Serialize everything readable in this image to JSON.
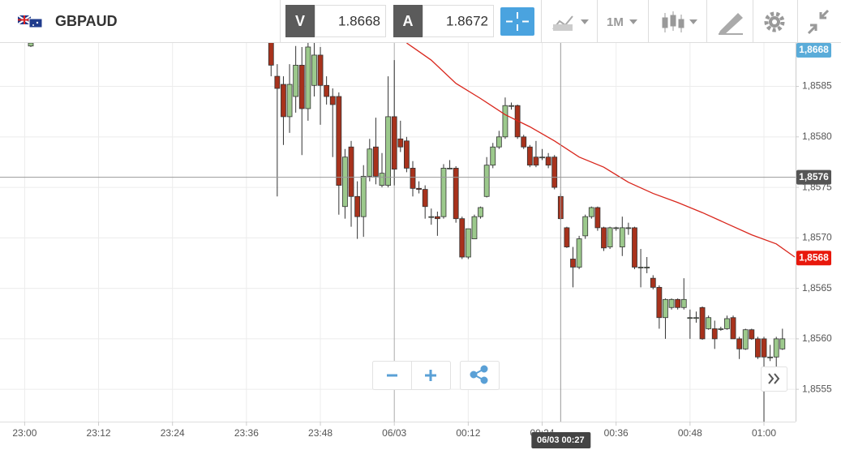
{
  "header": {
    "symbol": "GBPAUD",
    "bid_label": "V",
    "bid": "1.8668",
    "ask_label": "A",
    "ask": "1.8672",
    "timeframe": "1M"
  },
  "chart_data": {
    "type": "candlestick",
    "x": [
      "23:01",
      "23:40",
      "23:41",
      "23:42",
      "23:43",
      "23:44",
      "23:45",
      "23:46",
      "23:47",
      "23:48",
      "23:49",
      "23:50",
      "23:51",
      "23:52",
      "23:53",
      "23:54",
      "23:55",
      "23:56",
      "23:57",
      "23:58",
      "23:59",
      "00:00",
      "00:01",
      "00:02",
      "00:03",
      "00:04",
      "00:05",
      "00:06",
      "00:07",
      "00:08",
      "00:09",
      "00:10",
      "00:11",
      "00:12",
      "00:13",
      "00:14",
      "00:15",
      "00:16",
      "00:17",
      "00:18",
      "00:19",
      "00:20",
      "00:21",
      "00:22",
      "00:23",
      "00:24",
      "00:25",
      "00:26",
      "00:27",
      "00:28",
      "00:29",
      "00:30",
      "00:31",
      "00:32",
      "00:33",
      "00:34",
      "00:35",
      "00:36",
      "00:37",
      "00:38",
      "00:39",
      "00:40",
      "00:41",
      "00:42",
      "00:43",
      "00:44",
      "00:45",
      "00:46",
      "00:47",
      "00:48",
      "00:49",
      "00:50",
      "00:51",
      "00:52",
      "00:53",
      "00:54",
      "00:55",
      "00:56",
      "00:57",
      "00:58",
      "00:59",
      "01:00",
      "01:01",
      "01:02",
      "01:03"
    ],
    "open": [
      1.8589,
      1.859,
      1.8586,
      1.85852,
      1.8582,
      1.8584,
      1.85871,
      1.85828,
      1.85851,
      1.85881,
      1.85851,
      1.8584,
      1.8584,
      1.85731,
      1.8579,
      1.85741,
      1.85721,
      1.85761,
      1.8579,
      1.85752,
      1.85752,
      1.8582,
      1.85798,
      1.85796,
      1.85769,
      1.85749,
      1.85748,
      1.85721,
      1.85721,
      1.85721,
      1.85769,
      1.85769,
      1.85719,
      1.85681,
      1.85699,
      1.85721,
      1.85741,
      1.85772,
      1.8579,
      1.858,
      1.85831,
      1.85831,
      1.858,
      1.8579,
      1.8578,
      1.8578,
      1.8578,
      1.8578,
      1.85741,
      1.8571,
      1.85679,
      1.85671,
      1.85702,
      1.85721,
      1.8573,
      1.8571,
      1.85691,
      1.8571,
      1.85691,
      1.8571,
      1.8571,
      1.85671,
      1.85671,
      1.8566,
      1.85651,
      1.85621,
      1.85631,
      1.85639,
      1.85631,
      1.85621,
      1.85621,
      1.85631,
      1.8561,
      1.8561,
      1.8561,
      1.8561,
      1.85621,
      1.856,
      1.8559,
      1.85609,
      1.856,
      1.856,
      1.85582,
      1.85582,
      1.8559
    ],
    "high": [
      1.85894,
      1.8591,
      1.85872,
      1.8586,
      1.85872,
      1.8589,
      1.85889,
      1.85893,
      1.859,
      1.85889,
      1.8586,
      1.85848,
      1.85844,
      1.85788,
      1.85796,
      1.85756,
      1.85772,
      1.85798,
      1.85819,
      1.85784,
      1.8586,
      1.85876,
      1.85816,
      1.858,
      1.85776,
      1.85756,
      1.85752,
      1.85729,
      1.85726,
      1.85773,
      1.85777,
      1.85771,
      1.85721,
      1.85709,
      1.85723,
      1.85731,
      1.8578,
      1.85794,
      1.85806,
      1.85839,
      1.85834,
      1.85832,
      1.85802,
      1.85792,
      1.85796,
      1.85788,
      1.85784,
      1.85782,
      1.85744,
      1.85711,
      1.85691,
      1.85702,
      1.85723,
      1.85731,
      1.85731,
      1.85711,
      1.85711,
      1.85711,
      1.85721,
      1.85715,
      1.85711,
      1.85689,
      1.85681,
      1.85663,
      1.85653,
      1.8564,
      1.8564,
      1.8564,
      1.8566,
      1.85629,
      1.85627,
      1.85632,
      1.85623,
      1.85618,
      1.85612,
      1.85623,
      1.85623,
      1.85602,
      1.8561,
      1.8561,
      1.85602,
      1.85602,
      1.85594,
      1.85602,
      1.8561
    ],
    "low": [
      1.85889,
      1.8586,
      1.85741,
      1.85792,
      1.85804,
      1.85824,
      1.85782,
      1.85816,
      1.8584,
      1.85812,
      1.85832,
      1.8578,
      1.85723,
      1.85719,
      1.85711,
      1.85699,
      1.85701,
      1.85756,
      1.85753,
      1.8575,
      1.8575,
      1.85752,
      1.85785,
      1.85765,
      1.85741,
      1.85744,
      1.85719,
      1.85713,
      1.85702,
      1.85719,
      1.85768,
      1.85715,
      1.85679,
      1.85679,
      1.85699,
      1.85719,
      1.8574,
      1.85769,
      1.85788,
      1.85798,
      1.85827,
      1.85798,
      1.85788,
      1.8577,
      1.8577,
      1.85777,
      1.85769,
      1.85748,
      1.85718,
      1.8569,
      1.85651,
      1.85669,
      1.85699,
      1.85719,
      1.85707,
      1.85687,
      1.85689,
      1.85707,
      1.85682,
      1.85703,
      1.85669,
      1.85651,
      1.85665,
      1.85649,
      1.8561,
      1.856,
      1.85629,
      1.85629,
      1.85629,
      1.856,
      1.85616,
      1.85599,
      1.85609,
      1.8559,
      1.85608,
      1.85609,
      1.856,
      1.8558,
      1.85589,
      1.85599,
      1.8558,
      1.85518,
      1.85578,
      1.8555,
      1.85589
    ],
    "close": [
      1.85893,
      1.85871,
      1.85848,
      1.8582,
      1.85852,
      1.85871,
      1.85828,
      1.85889,
      1.85881,
      1.85851,
      1.8584,
      1.85832,
      1.85752,
      1.8578,
      1.85741,
      1.85721,
      1.85761,
      1.85788,
      1.85761,
      1.85764,
      1.8582,
      1.85768,
      1.8579,
      1.85769,
      1.85749,
      1.85748,
      1.85731,
      1.85721,
      1.85719,
      1.85769,
      1.85769,
      1.85719,
      1.85681,
      1.85709,
      1.85721,
      1.8573,
      1.85772,
      1.8579,
      1.858,
      1.85831,
      1.85831,
      1.858,
      1.8579,
      1.85772,
      1.85772,
      1.8578,
      1.85772,
      1.8575,
      1.85719,
      1.85691,
      1.85671,
      1.85699,
      1.85721,
      1.8573,
      1.8571,
      1.8569,
      1.8571,
      1.8571,
      1.8571,
      1.8571,
      1.85671,
      1.85671,
      1.85671,
      1.85651,
      1.85621,
      1.85639,
      1.85639,
      1.85631,
      1.85639,
      1.85621,
      1.85621,
      1.856,
      1.85621,
      1.856,
      1.8561,
      1.8562,
      1.856,
      1.8559,
      1.85609,
      1.856,
      1.85582,
      1.85582,
      1.85582,
      1.856,
      1.856
    ],
    "up_color": "#9cc98c",
    "down_color": "#a8321c",
    "xlim": [
      "22:56",
      "01:05"
    ],
    "xticks": [
      "23:00",
      "23:12",
      "23:24",
      "23:36",
      "23:48",
      {
        "value": "00:00",
        "label": "06/03"
      },
      "00:12",
      "00:24",
      "00:36",
      "00:48",
      "01:00"
    ],
    "ylim": [
      1.85518,
      1.85893
    ],
    "yticks": [
      {
        "value": 1.8555,
        "label": "1,8555"
      },
      {
        "value": 1.856,
        "label": "1,8560"
      },
      {
        "value": 1.8565,
        "label": "1,8565"
      },
      {
        "value": 1.857,
        "label": "1,8570"
      },
      {
        "value": 1.8575,
        "label": "1,8575"
      },
      {
        "value": 1.858,
        "label": "1,8580"
      },
      {
        "value": 1.8585,
        "label": "1,8585"
      }
    ],
    "grid": true,
    "overlay": {
      "color": "#d9261c",
      "x": [
        "00:02",
        "00:06",
        "00:10",
        "00:14",
        "00:18",
        "00:22",
        "00:26",
        "00:30",
        "00:34",
        "00:38",
        "00:42",
        "00:46",
        "00:50",
        "00:54",
        "00:58",
        "01:02",
        "01:05"
      ],
      "values": [
        1.85893,
        1.85876,
        1.85853,
        1.85838,
        1.85822,
        1.8581,
        1.85796,
        1.8578,
        1.8577,
        1.85755,
        1.85744,
        1.85735,
        1.85725,
        1.85714,
        1.85703,
        1.85694,
        1.85681
      ]
    },
    "price_tags": [
      {
        "value": 1.8668,
        "label": "1,8668",
        "color": "#5aacd9"
      },
      {
        "value": 1.8568,
        "label": "1,8568",
        "color": "#e8180c"
      }
    ],
    "crosshair": {
      "x": "00:27",
      "x_label": "06/03 00:27",
      "value": 1.8576,
      "value_label": "1,8576"
    }
  }
}
